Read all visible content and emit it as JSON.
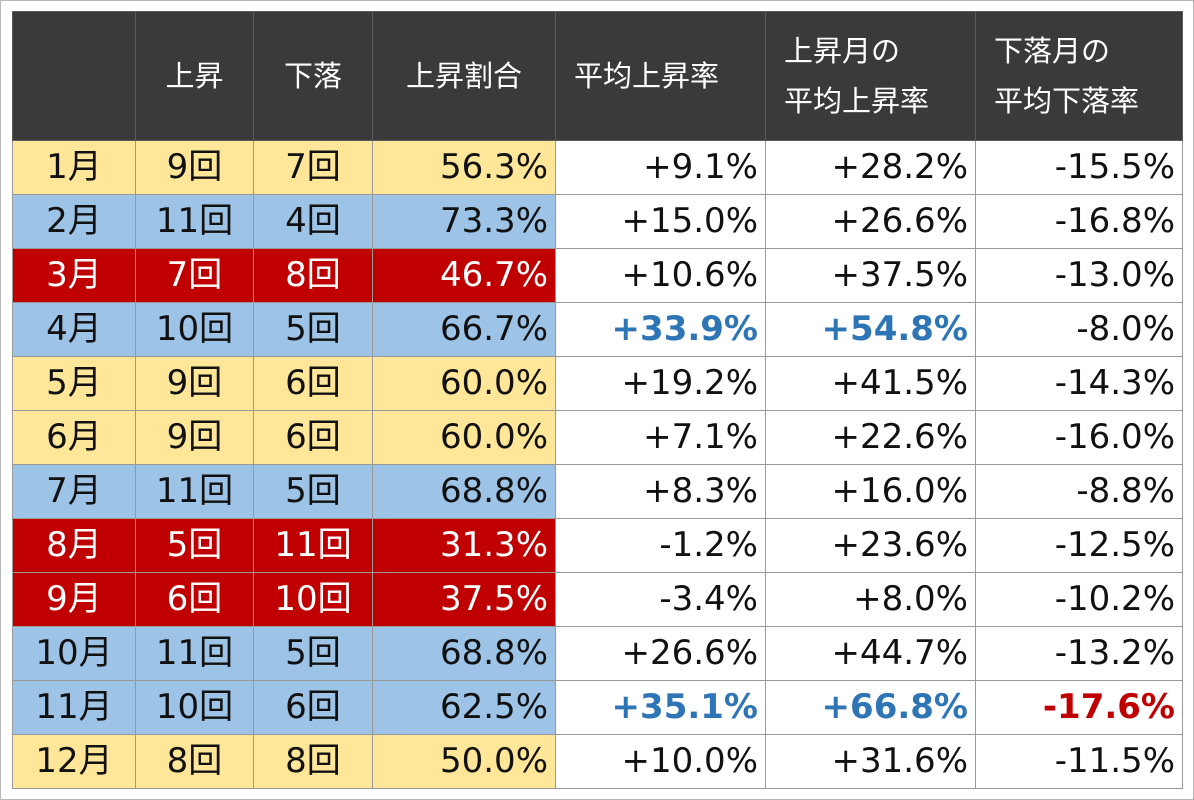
{
  "header": {
    "up": "上昇",
    "down": "下落",
    "up_ratio": "上昇割合",
    "avg_rise": "平均上昇率",
    "up_month_avg_l1": "上昇月の",
    "up_month_avg_l2": "平均上昇率",
    "down_month_avg_l1": "下落月の",
    "down_month_avg_l2": "平均下落率"
  },
  "rows": [
    {
      "month": "1月",
      "up": "9回",
      "down": "7回",
      "ratio": "56.3%",
      "avg": "+9.1%",
      "up_avg": "+28.2%",
      "down_avg": "-15.5%",
      "tint": "yellow",
      "hl_avg": "none",
      "hl_up_avg": "none",
      "hl_down_avg": "none"
    },
    {
      "month": "2月",
      "up": "11回",
      "down": "4回",
      "ratio": "73.3%",
      "avg": "+15.0%",
      "up_avg": "+26.6%",
      "down_avg": "-16.8%",
      "tint": "blue",
      "hl_avg": "none",
      "hl_up_avg": "none",
      "hl_down_avg": "none"
    },
    {
      "month": "3月",
      "up": "7回",
      "down": "8回",
      "ratio": "46.7%",
      "avg": "+10.6%",
      "up_avg": "+37.5%",
      "down_avg": "-13.0%",
      "tint": "red",
      "hl_avg": "none",
      "hl_up_avg": "none",
      "hl_down_avg": "none"
    },
    {
      "month": "4月",
      "up": "10回",
      "down": "5回",
      "ratio": "66.7%",
      "avg": "+33.9%",
      "up_avg": "+54.8%",
      "down_avg": "-8.0%",
      "tint": "blue",
      "hl_avg": "blue",
      "hl_up_avg": "blue",
      "hl_down_avg": "none"
    },
    {
      "month": "5月",
      "up": "9回",
      "down": "6回",
      "ratio": "60.0%",
      "avg": "+19.2%",
      "up_avg": "+41.5%",
      "down_avg": "-14.3%",
      "tint": "yellow",
      "hl_avg": "none",
      "hl_up_avg": "none",
      "hl_down_avg": "none"
    },
    {
      "month": "6月",
      "up": "9回",
      "down": "6回",
      "ratio": "60.0%",
      "avg": "+7.1%",
      "up_avg": "+22.6%",
      "down_avg": "-16.0%",
      "tint": "yellow",
      "hl_avg": "none",
      "hl_up_avg": "none",
      "hl_down_avg": "none"
    },
    {
      "month": "7月",
      "up": "11回",
      "down": "5回",
      "ratio": "68.8%",
      "avg": "+8.3%",
      "up_avg": "+16.0%",
      "down_avg": "-8.8%",
      "tint": "blue",
      "hl_avg": "none",
      "hl_up_avg": "none",
      "hl_down_avg": "none"
    },
    {
      "month": "8月",
      "up": "5回",
      "down": "11回",
      "ratio": "31.3%",
      "avg": "-1.2%",
      "up_avg": "+23.6%",
      "down_avg": "-12.5%",
      "tint": "red",
      "hl_avg": "none",
      "hl_up_avg": "none",
      "hl_down_avg": "none"
    },
    {
      "month": "9月",
      "up": "6回",
      "down": "10回",
      "ratio": "37.5%",
      "avg": "-3.4%",
      "up_avg": "+8.0%",
      "down_avg": "-10.2%",
      "tint": "red",
      "hl_avg": "none",
      "hl_up_avg": "none",
      "hl_down_avg": "none"
    },
    {
      "month": "10月",
      "up": "11回",
      "down": "5回",
      "ratio": "68.8%",
      "avg": "+26.6%",
      "up_avg": "+44.7%",
      "down_avg": "-13.2%",
      "tint": "blue",
      "hl_avg": "none",
      "hl_up_avg": "none",
      "hl_down_avg": "none"
    },
    {
      "month": "11月",
      "up": "10回",
      "down": "6回",
      "ratio": "62.5%",
      "avg": "+35.1%",
      "up_avg": "+66.8%",
      "down_avg": "-17.6%",
      "tint": "blue",
      "hl_avg": "blue",
      "hl_up_avg": "blue",
      "hl_down_avg": "red"
    },
    {
      "month": "12月",
      "up": "8回",
      "down": "8回",
      "ratio": "50.0%",
      "avg": "+10.0%",
      "up_avg": "+31.6%",
      "down_avg": "-11.5%",
      "tint": "yellow",
      "hl_avg": "none",
      "hl_up_avg": "none",
      "hl_down_avg": "none"
    }
  ],
  "colors": {
    "header_bg": "#3a3a3a",
    "yellow": "#ffe699",
    "blue": "#9dc3e6",
    "red": "#c00000",
    "highlight_blue": "#2e75b6",
    "highlight_red": "#c00000"
  }
}
